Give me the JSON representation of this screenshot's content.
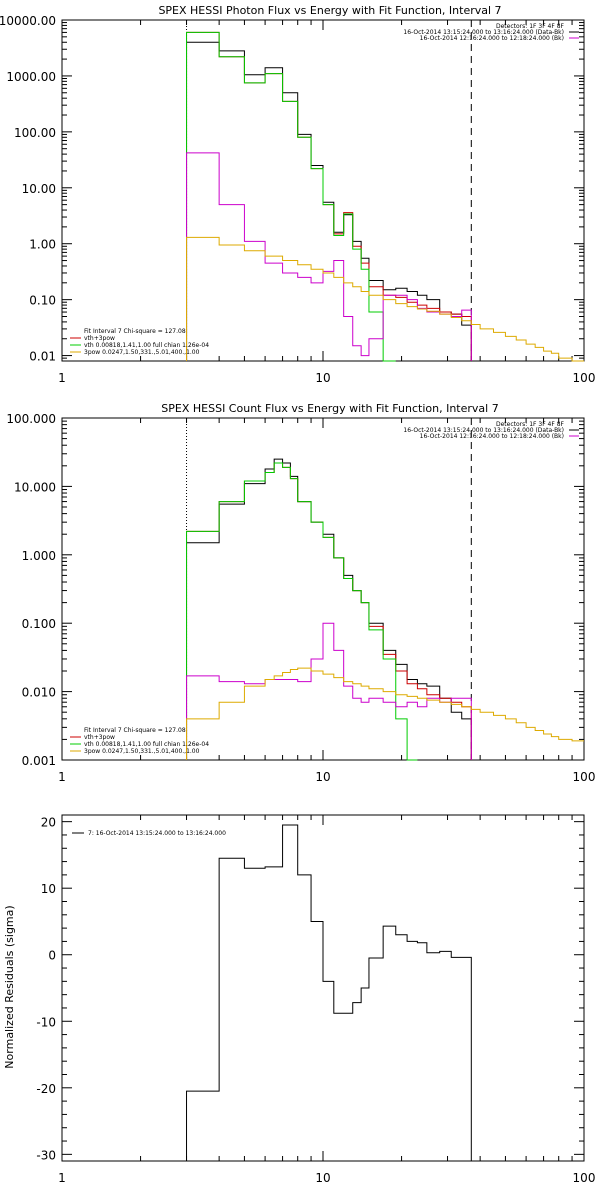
{
  "chart_data": [
    {
      "type": "line",
      "title": "SPEX HESSI Photon Flux vs Energy with Fit Function, Interval 7",
      "xscale": "log",
      "yscale": "log",
      "xlim": [
        1,
        100
      ],
      "ylim": [
        0.008,
        10000
      ],
      "x_ticks": [
        "1",
        "10",
        "100"
      ],
      "y_ticks": [
        {
          "value": 0.01,
          "label": "0.01"
        },
        {
          "value": 0.1,
          "label": "0.10"
        },
        {
          "value": 1,
          "label": "1.00"
        },
        {
          "value": 10,
          "label": "10.00"
        },
        {
          "value": 100,
          "label": "100.00"
        },
        {
          "value": 1000,
          "label": "1000.00"
        },
        {
          "value": 10000,
          "label": "10000.00"
        }
      ],
      "vlines": [
        {
          "x": 3,
          "style": "dotted"
        },
        {
          "x": 37,
          "style": "dashed"
        }
      ],
      "legend_top": [
        {
          "text": "Detectors: 1F 3F 4F 8F",
          "color": "#000000"
        },
        {
          "text": "16-Oct-2014 13:15:24.000 to 13:16:24.000 (Data-Bk)",
          "color": "#000000"
        },
        {
          "text": "16-Oct-2014 12:16:24.000 to 12:18:24.000 (Bk)",
          "color": "#cc00cc"
        }
      ],
      "legend_bottom": [
        {
          "text": "Fit Interval  7     Chi-square = 127.08",
          "color": "#000000"
        },
        {
          "text": "vth+3pow",
          "color": "#cc0000"
        },
        {
          "text": "vth 0.00818,1.41,1.00  full chian 1.26e-04",
          "color": "#00cc00"
        },
        {
          "text": "3pow 0.0247,1.50,331.,5.01,400.,1.00",
          "color": "#ddaa00"
        }
      ],
      "edges": [
        3.0,
        3.5,
        4.0,
        4.5,
        5.0,
        5.5,
        6.0,
        6.5,
        7.0,
        7.5,
        8.0,
        9.0,
        10.0,
        11.0,
        12.0,
        13.0,
        14.0,
        15.0,
        17.0,
        19.0,
        21.0,
        23.0,
        25.0,
        28.0,
        31.0,
        34.0,
        37.0,
        40.0,
        45.0,
        50.0,
        55.0,
        60.0,
        65.0,
        70.0,
        75.0,
        80.0,
        90.0,
        100.0
      ],
      "series": [
        {
          "name": "Data-Bk",
          "color": "#000000",
          "end": 26,
          "values": [
            4000,
            4000,
            2800,
            2800,
            1050,
            1050,
            1400,
            1400,
            500,
            500,
            90,
            25,
            5.5,
            1.6,
            3.3,
            1.1,
            0.55,
            0.22,
            0.15,
            0.16,
            0.14,
            0.12,
            0.1,
            0.06,
            0.055,
            0.035
          ]
        },
        {
          "name": "vth+3pow",
          "color": "#cc0000",
          "end": 26,
          "values": [
            6000,
            6000,
            2200,
            2200,
            750,
            750,
            1100,
            1100,
            350,
            350,
            80,
            22,
            5,
            1.5,
            3.6,
            0.9,
            0.45,
            0.17,
            0.12,
            0.11,
            0.09,
            0.08,
            0.07,
            0.06,
            0.055,
            0.05
          ]
        },
        {
          "name": "vth",
          "color": "#00cc00",
          "end": 19,
          "values": [
            6000,
            6000,
            2200,
            2200,
            750,
            750,
            1100,
            1100,
            350,
            350,
            80,
            22,
            5,
            1.4,
            3.4,
            0.8,
            0.35,
            0.06,
            0.008
          ]
        },
        {
          "name": "Bk",
          "color": "#cc00cc",
          "end": 26,
          "values": [
            42,
            42,
            5,
            5,
            1.1,
            1.1,
            0.45,
            0.45,
            0.3,
            0.3,
            0.25,
            0.2,
            0.32,
            0.5,
            0.05,
            0.015,
            0.01,
            0.02,
            0.12,
            0.12,
            0.1,
            0.07,
            0.06,
            0.055,
            0.05,
            0.065
          ]
        },
        {
          "name": "3pow",
          "color": "#ddaa00",
          "end": 37,
          "values": [
            1.3,
            1.3,
            0.95,
            0.95,
            0.75,
            0.75,
            0.6,
            0.6,
            0.5,
            0.5,
            0.42,
            0.35,
            0.3,
            0.25,
            0.2,
            0.17,
            0.14,
            0.12,
            0.1,
            0.085,
            0.075,
            0.068,
            0.062,
            0.055,
            0.048,
            0.042,
            0.036,
            0.03,
            0.026,
            0.022,
            0.019,
            0.016,
            0.014,
            0.012,
            0.011,
            0.009,
            0.008
          ]
        }
      ]
    },
    {
      "type": "line",
      "title": "SPEX HESSI Count Flux vs Energy with Fit Function, Interval 7",
      "xscale": "log",
      "yscale": "log",
      "xlim": [
        1,
        100
      ],
      "ylim": [
        0.001,
        100
      ],
      "x_ticks": [
        "1",
        "10",
        "100"
      ],
      "y_ticks": [
        {
          "value": 0.001,
          "label": "0.001"
        },
        {
          "value": 0.01,
          "label": "0.010"
        },
        {
          "value": 0.1,
          "label": "0.100"
        },
        {
          "value": 1,
          "label": "1.000"
        },
        {
          "value": 10,
          "label": "10.000"
        },
        {
          "value": 100,
          "label": "100.000"
        }
      ],
      "vlines": [
        {
          "x": 3,
          "style": "dotted"
        },
        {
          "x": 37,
          "style": "dashed"
        }
      ],
      "legend_top": [
        {
          "text": "Detectors: 1F 3F 4F 8F",
          "color": "#000000"
        },
        {
          "text": "16-Oct-2014 13:15:24.000 to 13:16:24.000 (Data-Bk)",
          "color": "#000000"
        },
        {
          "text": "16-Oct-2014 12:16:24.000 to 12:18:24.000 (Bk)",
          "color": "#cc00cc"
        }
      ],
      "legend_bottom": [
        {
          "text": "Fit Interval  7     Chi-square = 127.08",
          "color": "#000000"
        },
        {
          "text": "vth+3pow",
          "color": "#cc0000"
        },
        {
          "text": "vth 0.00818,1.41,1.00  full chian 1.26e-04",
          "color": "#00cc00"
        },
        {
          "text": "3pow 0.0247,1.50,331.,5.01,400.,1.00",
          "color": "#ddaa00"
        }
      ],
      "edges": [
        3.0,
        4.0,
        5.0,
        6.0,
        6.5,
        7.0,
        7.5,
        8.0,
        9.0,
        10.0,
        11.0,
        12.0,
        13.0,
        14.0,
        15.0,
        17.0,
        19.0,
        21.0,
        23.0,
        25.0,
        28.0,
        31.0,
        34.0,
        37.0,
        40.0,
        45.0,
        50.0,
        55.0,
        60.0,
        65.0,
        70.0,
        75.0,
        80.0,
        90.0,
        100.0
      ],
      "series": [
        {
          "name": "Data-Bk",
          "color": "#000000",
          "end": 23,
          "values": [
            1.5,
            5.5,
            11,
            18,
            25,
            22,
            14,
            6,
            3,
            2,
            0.9,
            0.5,
            0.3,
            0.2,
            0.1,
            0.04,
            0.025,
            0.015,
            0.013,
            0.012,
            0.008,
            0.005,
            0.004
          ]
        },
        {
          "name": "vth+3pow",
          "color": "#cc0000",
          "end": 23,
          "values": [
            2.2,
            6,
            12,
            16,
            22,
            19,
            13,
            6,
            3,
            1.8,
            0.9,
            0.45,
            0.3,
            0.2,
            0.09,
            0.035,
            0.02,
            0.013,
            0.011,
            0.009,
            0.008,
            0.007,
            0.006
          ]
        },
        {
          "name": "vth",
          "color": "#00cc00",
          "end": 18,
          "values": [
            2.2,
            6,
            12,
            16,
            22,
            19,
            13,
            6,
            3,
            1.8,
            0.9,
            0.45,
            0.3,
            0.2,
            0.08,
            0.03,
            0.004,
            0.0008
          ]
        },
        {
          "name": "Bk",
          "color": "#cc00cc",
          "end": 23,
          "values": [
            0.017,
            0.014,
            0.013,
            0.015,
            0.015,
            0.015,
            0.015,
            0.014,
            0.03,
            0.1,
            0.04,
            0.012,
            0.008,
            0.007,
            0.008,
            0.007,
            0.006,
            0.007,
            0.006,
            0.008,
            0.007,
            0.008,
            0.008
          ]
        },
        {
          "name": "3pow",
          "color": "#ddaa00",
          "end": 34,
          "values": [
            0.004,
            0.007,
            0.012,
            0.015,
            0.017,
            0.019,
            0.021,
            0.022,
            0.02,
            0.018,
            0.016,
            0.014,
            0.013,
            0.012,
            0.011,
            0.01,
            0.009,
            0.0085,
            0.008,
            0.0075,
            0.007,
            0.0065,
            0.006,
            0.0055,
            0.005,
            0.0045,
            0.004,
            0.0035,
            0.003,
            0.0027,
            0.0024,
            0.0022,
            0.002,
            0.0019
          ]
        }
      ]
    },
    {
      "type": "line",
      "title": "",
      "ylabel": "Normalized Residuals (sigma)",
      "xscale": "log",
      "yscale": "linear",
      "xlim": [
        1,
        100
      ],
      "ylim": [
        -31,
        21
      ],
      "x_ticks": [
        "1",
        "10",
        "100"
      ],
      "y_ticks": [
        {
          "value": 20,
          "label": "20"
        },
        {
          "value": 10,
          "label": "10"
        },
        {
          "value": 0,
          "label": "0"
        },
        {
          "value": -10,
          "label": "-10"
        },
        {
          "value": -20,
          "label": "-20"
        },
        {
          "value": -30,
          "label": "-30"
        }
      ],
      "legend_top_left": {
        "text": "7: 16-Oct-2014 13:15:24.000 to 13:16:24.000",
        "color": "#000000"
      },
      "edges": [
        3.0,
        4.0,
        5.0,
        6.0,
        7.0,
        8.0,
        9.0,
        10.0,
        11.0,
        12.0,
        13.0,
        14.0,
        15.0,
        17.0,
        19.0,
        21.0,
        23.0,
        25.0,
        28.0,
        31.0,
        34.0,
        37.0
      ],
      "series": [
        {
          "name": "7: 16-Oct-2014 13:15:24.000 to 13:16:24.000",
          "color": "#000000",
          "end": 21,
          "start_value": -31,
          "end_value": -31,
          "values": [
            -20.5,
            14.5,
            13,
            13.2,
            19.5,
            12,
            5,
            -4,
            -8.8,
            -8.8,
            -7.2,
            -5,
            -0.5,
            4.3,
            3,
            2,
            1.8,
            0.3,
            0.5,
            -0.4,
            -0.4
          ]
        }
      ]
    }
  ]
}
